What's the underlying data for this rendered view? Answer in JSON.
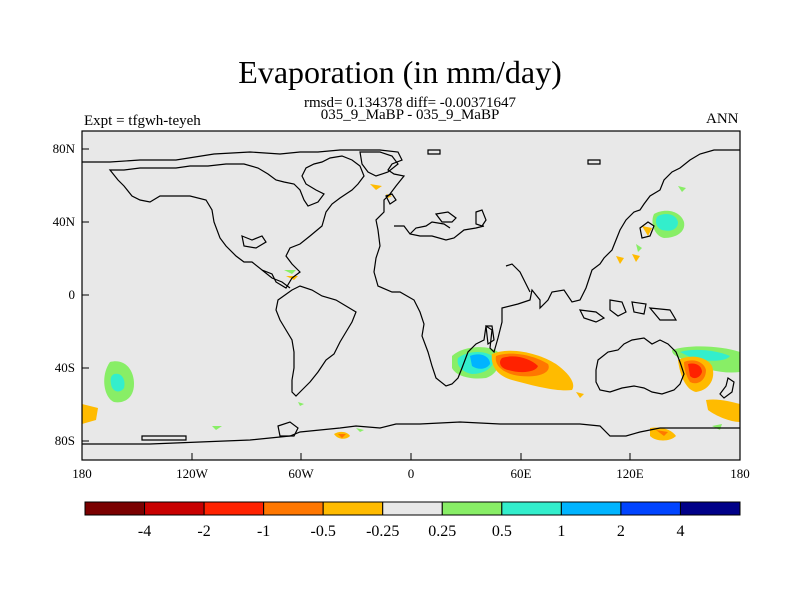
{
  "title": "Evaporation (in mm/day)",
  "stats": "rmsd= 0.134378 diff= -0.00371647",
  "cases": "035_9_MaBP - 035_9_MaBP",
  "expt": "Expt = tfgwh-teyeh",
  "season": "ANN",
  "colors": {
    "background": "#e8e8e8",
    "palette": [
      "#7a0000",
      "#c80000",
      "#ff2200",
      "#ff7700",
      "#ffbb00",
      "#e8e8e8",
      "#88ee66",
      "#33eecc",
      "#00b4ff",
      "#0044ff",
      "#000088"
    ]
  },
  "map_data": {
    "type": "filled_contour_map",
    "variable": "Evaporation difference",
    "units": "mm/day",
    "lon_range": [
      -180,
      180
    ],
    "lat_range": [
      -90,
      90
    ],
    "x_ticks": [
      "180",
      "120W",
      "60W",
      "0",
      "60E",
      "120E",
      "180"
    ],
    "y_ticks": [
      "80N",
      "40N",
      "0",
      "40S",
      "80S"
    ],
    "colorbar_labels": [
      "-4",
      "-2",
      "-1",
      "-0.5",
      "-0.25",
      "0.25",
      "0.5",
      "1",
      "2",
      "4"
    ]
  }
}
